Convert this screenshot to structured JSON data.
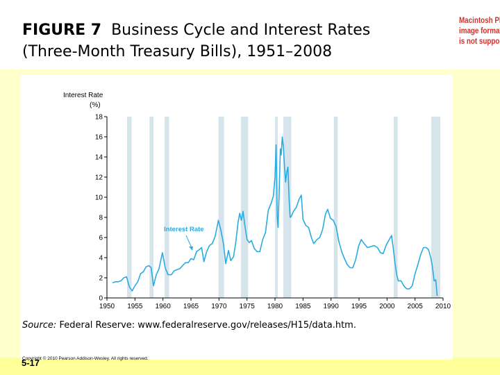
{
  "slide": {
    "title_prefix": "FIGURE 7",
    "title_text": "Business Cycle and Interest Rates (Three-Month Treasury Bills), 1951–2008",
    "placeholder_lines": [
      "Macintosh PICT",
      "image format",
      "is not supported"
    ],
    "source_label": "Source:",
    "source_text": "Federal Reserve: www.federalreserve.gov/releases/H15/data.htm.",
    "copyright": "Copyright © 2010 Pearson Addison-Wesley. All rights reserved.",
    "slide_number": "5-17"
  },
  "colors": {
    "line": "#29abe2",
    "recession": "#d6e4ec",
    "annotation": "#2ba9e0",
    "placeholder_text": "#d2322d"
  },
  "chart_data": {
    "type": "line",
    "title": "",
    "ylabel": "Interest Rate (%)",
    "ylabel_line1": "Interest Rate",
    "ylabel_line2": "(%)",
    "xlabel": "",
    "xlim": [
      1950,
      2010
    ],
    "ylim": [
      0,
      18
    ],
    "xticks": [
      1950,
      1955,
      1960,
      1965,
      1970,
      1975,
      1980,
      1985,
      1990,
      1995,
      2000,
      2005,
      2010
    ],
    "yticks": [
      0,
      2,
      4,
      6,
      8,
      10,
      12,
      14,
      16,
      18
    ],
    "grid": false,
    "annotation": "Interest Rate",
    "recessions": [
      [
        1953.6,
        1954.4
      ],
      [
        1957.6,
        1958.3
      ],
      [
        1960.3,
        1961.1
      ],
      [
        1969.9,
        1970.9
      ],
      [
        1973.9,
        1975.2
      ],
      [
        1980.0,
        1980.5
      ],
      [
        1981.5,
        1982.9
      ],
      [
        1990.5,
        1991.2
      ],
      [
        2001.2,
        2001.9
      ],
      [
        2007.9,
        2009.5
      ]
    ],
    "series": [
      {
        "name": "Three-Month Treasury Bills",
        "x": [
          1951.0,
          1951.5,
          1952.0,
          1952.5,
          1953.0,
          1953.5,
          1954.0,
          1954.5,
          1955.0,
          1955.5,
          1956.0,
          1956.5,
          1957.0,
          1957.5,
          1957.9,
          1958.3,
          1958.8,
          1959.3,
          1959.9,
          1960.4,
          1960.9,
          1961.5,
          1962.0,
          1962.5,
          1963.0,
          1963.5,
          1964.0,
          1964.5,
          1965.0,
          1965.5,
          1966.0,
          1966.5,
          1966.9,
          1967.3,
          1967.8,
          1968.3,
          1968.8,
          1969.3,
          1969.9,
          1970.3,
          1970.8,
          1971.2,
          1971.7,
          1972.1,
          1972.6,
          1973.0,
          1973.4,
          1973.7,
          1974.0,
          1974.3,
          1974.6,
          1975.0,
          1975.4,
          1975.8,
          1976.3,
          1976.8,
          1977.3,
          1977.8,
          1978.3,
          1978.8,
          1979.3,
          1979.7,
          1980.0,
          1980.2,
          1980.4,
          1980.55,
          1980.75,
          1980.95,
          1981.1,
          1981.3,
          1981.5,
          1981.7,
          1981.9,
          1982.1,
          1982.3,
          1982.5,
          1982.7,
          1982.9,
          1983.3,
          1983.8,
          1984.3,
          1984.7,
          1985.0,
          1985.5,
          1986.0,
          1986.5,
          1986.9,
          1987.5,
          1988.0,
          1988.5,
          1989.0,
          1989.4,
          1989.9,
          1990.4,
          1990.9,
          1991.4,
          1991.9,
          1992.4,
          1992.9,
          1993.4,
          1993.9,
          1994.4,
          1994.9,
          1995.4,
          1995.9,
          1996.5,
          1997.1,
          1997.7,
          1998.3,
          1998.8,
          1999.3,
          1999.9,
          2000.4,
          2000.8,
          2001.1,
          2001.4,
          2001.7,
          2002.0,
          2002.5,
          2003.0,
          2003.5,
          2004.0,
          2004.5,
          2005.0,
          2005.5,
          2006.0,
          2006.5,
          2007.0,
          2007.4,
          2007.8,
          2008.1,
          2008.4,
          2008.7,
          2008.95
        ],
        "values": [
          1.5,
          1.6,
          1.6,
          1.7,
          2.0,
          2.1,
          1.1,
          0.7,
          1.2,
          1.6,
          2.4,
          2.6,
          3.1,
          3.2,
          3.0,
          1.2,
          2.3,
          2.9,
          4.5,
          3.0,
          2.3,
          2.3,
          2.7,
          2.8,
          2.9,
          3.2,
          3.5,
          3.5,
          3.9,
          3.8,
          4.6,
          4.8,
          5.0,
          3.6,
          4.6,
          5.2,
          5.4,
          6.1,
          7.7,
          6.8,
          5.4,
          3.4,
          4.7,
          3.7,
          4.1,
          5.5,
          7.5,
          8.4,
          7.7,
          8.6,
          7.3,
          5.8,
          5.5,
          5.7,
          4.9,
          4.6,
          4.6,
          5.8,
          6.5,
          8.7,
          9.4,
          10.1,
          12.0,
          15.2,
          8.0,
          7.0,
          10.5,
          14.8,
          14.2,
          16.0,
          15.0,
          13.0,
          11.5,
          12.5,
          13.0,
          10.0,
          8.0,
          8.1,
          8.6,
          9.0,
          9.8,
          10.2,
          7.8,
          7.2,
          7.0,
          6.0,
          5.4,
          5.8,
          6.0,
          6.8,
          8.3,
          8.8,
          7.9,
          7.7,
          7.1,
          5.6,
          4.6,
          3.9,
          3.3,
          3.0,
          3.0,
          3.8,
          5.1,
          5.8,
          5.4,
          5.0,
          5.1,
          5.2,
          5.0,
          4.5,
          4.4,
          5.3,
          5.8,
          6.2,
          5.0,
          3.6,
          2.4,
          1.7,
          1.7,
          1.2,
          0.9,
          0.9,
          1.2,
          2.4,
          3.3,
          4.3,
          5.0,
          5.0,
          4.8,
          4.0,
          3.1,
          1.7,
          1.8,
          0.2
        ]
      }
    ]
  }
}
